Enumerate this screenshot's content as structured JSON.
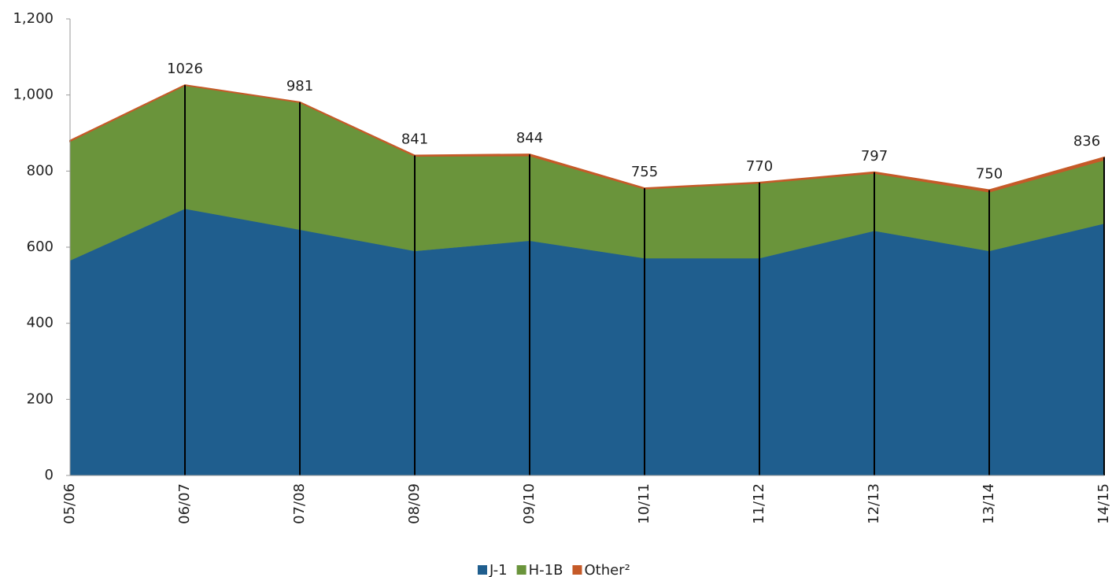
{
  "chart_data": {
    "type": "stacked_area",
    "categories": [
      "05/06",
      "06/07",
      "07/08",
      "08/09",
      "09/10",
      "10/11",
      "11/12",
      "12/13",
      "13/14",
      "14/15"
    ],
    "series": [
      {
        "name": "J-1",
        "color": "#1f5e8e",
        "values": [
          565,
          701,
          646,
          590,
          617,
          571,
          571,
          643,
          590,
          662
        ]
      },
      {
        "name": "H-1B",
        "color": "#6a943b",
        "values": [
          314,
          325,
          335,
          250,
          224,
          183,
          198,
          152,
          156,
          168
        ]
      },
      {
        "name": "Other²",
        "color": "#c55a28",
        "values": [
          1,
          0,
          0,
          1,
          3,
          1,
          1,
          2,
          4,
          6
        ]
      }
    ],
    "totals": [
      null,
      1026,
      981,
      841,
      844,
      755,
      770,
      797,
      750,
      836
    ],
    "ylim": [
      0,
      1200
    ],
    "yticks": [
      0,
      200,
      400,
      600,
      800,
      {
        "value": 1000,
        "label": "1,000"
      },
      {
        "value": 1200,
        "label": "1,200"
      }
    ],
    "grid": false,
    "legend": "bottom"
  }
}
